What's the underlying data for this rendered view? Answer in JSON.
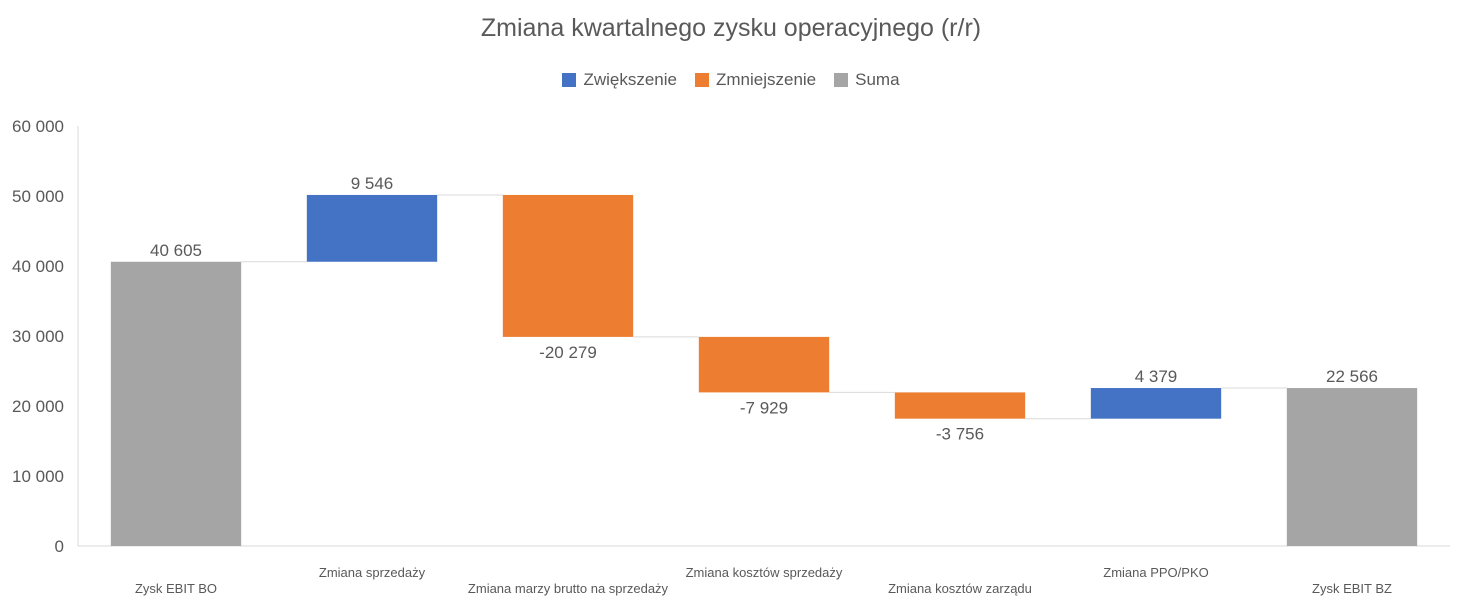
{
  "chart_data": {
    "type": "waterfall",
    "title": "Zmiana kwartalnego zysku operacyjnego (r/r)",
    "legend": [
      {
        "label": "Zwiększenie",
        "color": "#4472C4"
      },
      {
        "label": "Zmniejszenie",
        "color": "#ED7D31"
      },
      {
        "label": "Suma",
        "color": "#A5A5A5"
      }
    ],
    "legend_position": "top",
    "categories": [
      "Zysk EBIT BO",
      "Zmiana sprzedaży",
      "Zmiana marzy brutto na sprzedaży",
      "Zmiana kosztów sprzedaży",
      "Zmiana kosztów zarządu",
      "Zmiana PPO/PKO",
      "Zysk EBIT BZ"
    ],
    "values": [
      40605,
      9546,
      -20279,
      -7929,
      -3756,
      4379,
      22566
    ],
    "kinds": [
      "total",
      "increase",
      "decrease",
      "decrease",
      "decrease",
      "increase",
      "total"
    ],
    "data_labels": [
      "40 605",
      "9 546",
      "-20 279",
      "-7 929",
      "-3 756",
      "4 379",
      "22 566"
    ],
    "ylim": [
      0,
      60000
    ],
    "yticks": [
      0,
      10000,
      20000,
      30000,
      40000,
      50000,
      60000
    ],
    "ytick_labels": [
      "0",
      "10 000",
      "20 000",
      "30 000",
      "40 000",
      "50 000",
      "60 000"
    ],
    "grid": false,
    "colors": {
      "axis": "#D9D9D9",
      "text": "#595959"
    }
  }
}
